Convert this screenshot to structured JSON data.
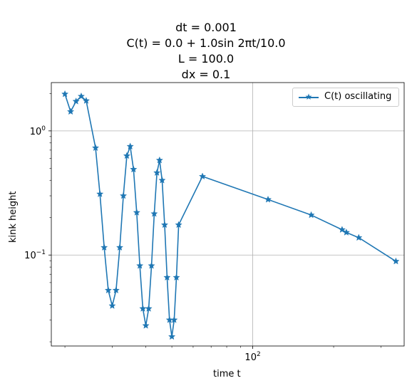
{
  "chart_data": {
    "type": "line",
    "title_lines": [
      "dt = 0.001",
      "C(t) = 0.0 + 1.0sin 2πt/10.0",
      "L = 100.0",
      "dx = 0.1"
    ],
    "xlabel": "time t",
    "ylabel": "kink height",
    "xscale": "log",
    "yscale": "log",
    "xlim": [
      17.8,
      366
    ],
    "ylim": [
      0.0185,
      2.45
    ],
    "grid": true,
    "legend_position": "upper-right",
    "xticks": [
      {
        "value": 100,
        "label_base": "10",
        "label_exp": "2"
      }
    ],
    "yticks": [
      {
        "value": 1,
        "label_base": "10",
        "label_exp": "0"
      },
      {
        "value": 0.1,
        "label_base": "10",
        "label_exp": "−1"
      }
    ],
    "series": [
      {
        "name": "C(t) oscillating",
        "color": "#1f77b4",
        "marker": "star",
        "x": [
          20,
          21,
          22,
          23,
          24,
          26,
          27,
          28,
          29,
          30,
          31,
          32,
          33,
          34,
          35,
          36,
          37,
          38,
          39,
          40,
          41,
          42,
          43,
          44,
          45,
          46,
          47,
          48,
          49,
          50,
          51,
          52,
          53,
          65,
          114,
          165,
          215,
          223,
          248,
          341
        ],
        "y": [
          1.98,
          1.43,
          1.73,
          1.9,
          1.75,
          0.73,
          0.31,
          0.115,
          0.052,
          0.039,
          0.052,
          0.115,
          0.3,
          0.63,
          0.75,
          0.49,
          0.22,
          0.082,
          0.037,
          0.027,
          0.037,
          0.082,
          0.215,
          0.46,
          0.58,
          0.4,
          0.175,
          0.066,
          0.03,
          0.022,
          0.03,
          0.066,
          0.175,
          0.43,
          0.28,
          0.21,
          0.16,
          0.152,
          0.138,
          0.089
        ]
      }
    ]
  }
}
